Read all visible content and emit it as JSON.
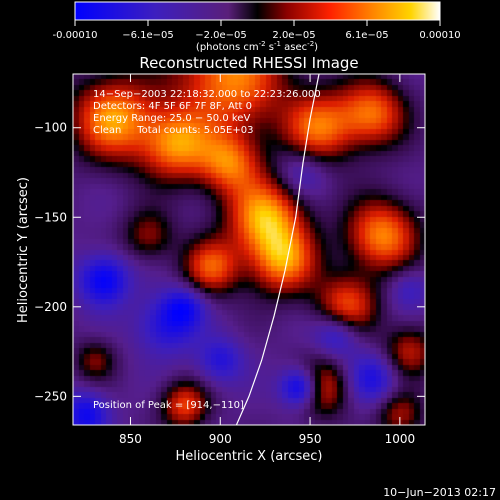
{
  "chart_data": {
    "type": "heatmap",
    "title": "Reconstructed RHESSI Image",
    "xlabel": "Heliocentric X (arcsec)",
    "ylabel": "Heliocentric Y (arcsec)",
    "xlim": [
      818,
      1014
    ],
    "ylim": [
      -266,
      -70
    ],
    "xticks": [
      850,
      900,
      950,
      1000
    ],
    "yticks": [
      -100,
      -150,
      -200,
      -250
    ],
    "colorbar": {
      "ticks": [
        "-0.00010",
        "−6.1e−05",
        "−2.0e−05",
        "2.0e−05",
        "6.1e−05",
        "0.00010"
      ],
      "range": [
        -0.0001,
        0.0001
      ],
      "units_line1": "(photons cm",
      "units_exp1": "-2",
      "units_line2": " s",
      "units_exp2": "-1",
      "units_line3": " asec",
      "units_exp3": "-2",
      "units_close": ")"
    },
    "annotation_lines": [
      "14−Sep−2003 22:18:32.000 to 22:23:26.000",
      "Detectors: 4F 5F 6F 7F 8F, Att 0",
      "Energy Range: 25.0 − 50.0 keV",
      "Clean     Total counts: 5.05E+03"
    ],
    "peak_label": "Position of Peak = [914,−110]",
    "limb_curve": {
      "x": [
        909,
        916,
        923,
        930,
        936,
        942,
        946,
        950,
        955
      ],
      "y": [
        -266,
        -250,
        -230,
        -205,
        -180,
        -150,
        -120,
        -95,
        -70
      ]
    },
    "peak_position": [
      914,
      -110
    ],
    "sources": [
      {
        "x": 905,
        "y": -72,
        "amp": 0.9,
        "w": 22
      },
      {
        "x": 840,
        "y": -95,
        "amp": 0.95,
        "w": 16
      },
      {
        "x": 875,
        "y": -110,
        "amp": 0.85,
        "w": 14
      },
      {
        "x": 905,
        "y": -120,
        "amp": 0.75,
        "w": 12
      },
      {
        "x": 955,
        "y": -100,
        "amp": 0.8,
        "w": 14
      },
      {
        "x": 985,
        "y": -92,
        "amp": 0.8,
        "w": 13
      },
      {
        "x": 925,
        "y": -150,
        "amp": 1.0,
        "w": 15
      },
      {
        "x": 935,
        "y": -175,
        "amp": 0.85,
        "w": 13
      },
      {
        "x": 895,
        "y": -178,
        "amp": 0.75,
        "w": 11
      },
      {
        "x": 860,
        "y": -160,
        "amp": 0.45,
        "w": 10
      },
      {
        "x": 990,
        "y": -160,
        "amp": 0.9,
        "w": 14
      },
      {
        "x": 970,
        "y": -200,
        "amp": 0.75,
        "w": 12
      },
      {
        "x": 955,
        "y": -245,
        "amp": 0.75,
        "w": 11
      },
      {
        "x": 1005,
        "y": -225,
        "amp": 0.55,
        "w": 10
      },
      {
        "x": 880,
        "y": -255,
        "amp": 0.7,
        "w": 9
      },
      {
        "x": 830,
        "y": -230,
        "amp": 0.4,
        "w": 8
      },
      {
        "x": 1000,
        "y": -260,
        "amp": 0.5,
        "w": 9
      },
      {
        "x": 870,
        "y": -210,
        "amp": -0.5,
        "w": 12
      },
      {
        "x": 835,
        "y": -185,
        "amp": -0.7,
        "w": 10
      },
      {
        "x": 880,
        "y": -200,
        "amp": -0.45,
        "w": 8
      },
      {
        "x": 945,
        "y": -245,
        "amp": -1.0,
        "w": 8
      },
      {
        "x": 965,
        "y": -215,
        "amp": -0.55,
        "w": 9
      },
      {
        "x": 985,
        "y": -240,
        "amp": -0.5,
        "w": 10
      },
      {
        "x": 825,
        "y": -260,
        "amp": -0.6,
        "w": 9
      },
      {
        "x": 900,
        "y": -230,
        "amp": -0.45,
        "w": 9
      },
      {
        "x": 945,
        "y": -125,
        "amp": -0.35,
        "w": 10
      },
      {
        "x": 1005,
        "y": -190,
        "amp": -0.3,
        "w": 8
      }
    ]
  },
  "footer": {
    "timestamp": "10−Jun−2013 02:17"
  }
}
